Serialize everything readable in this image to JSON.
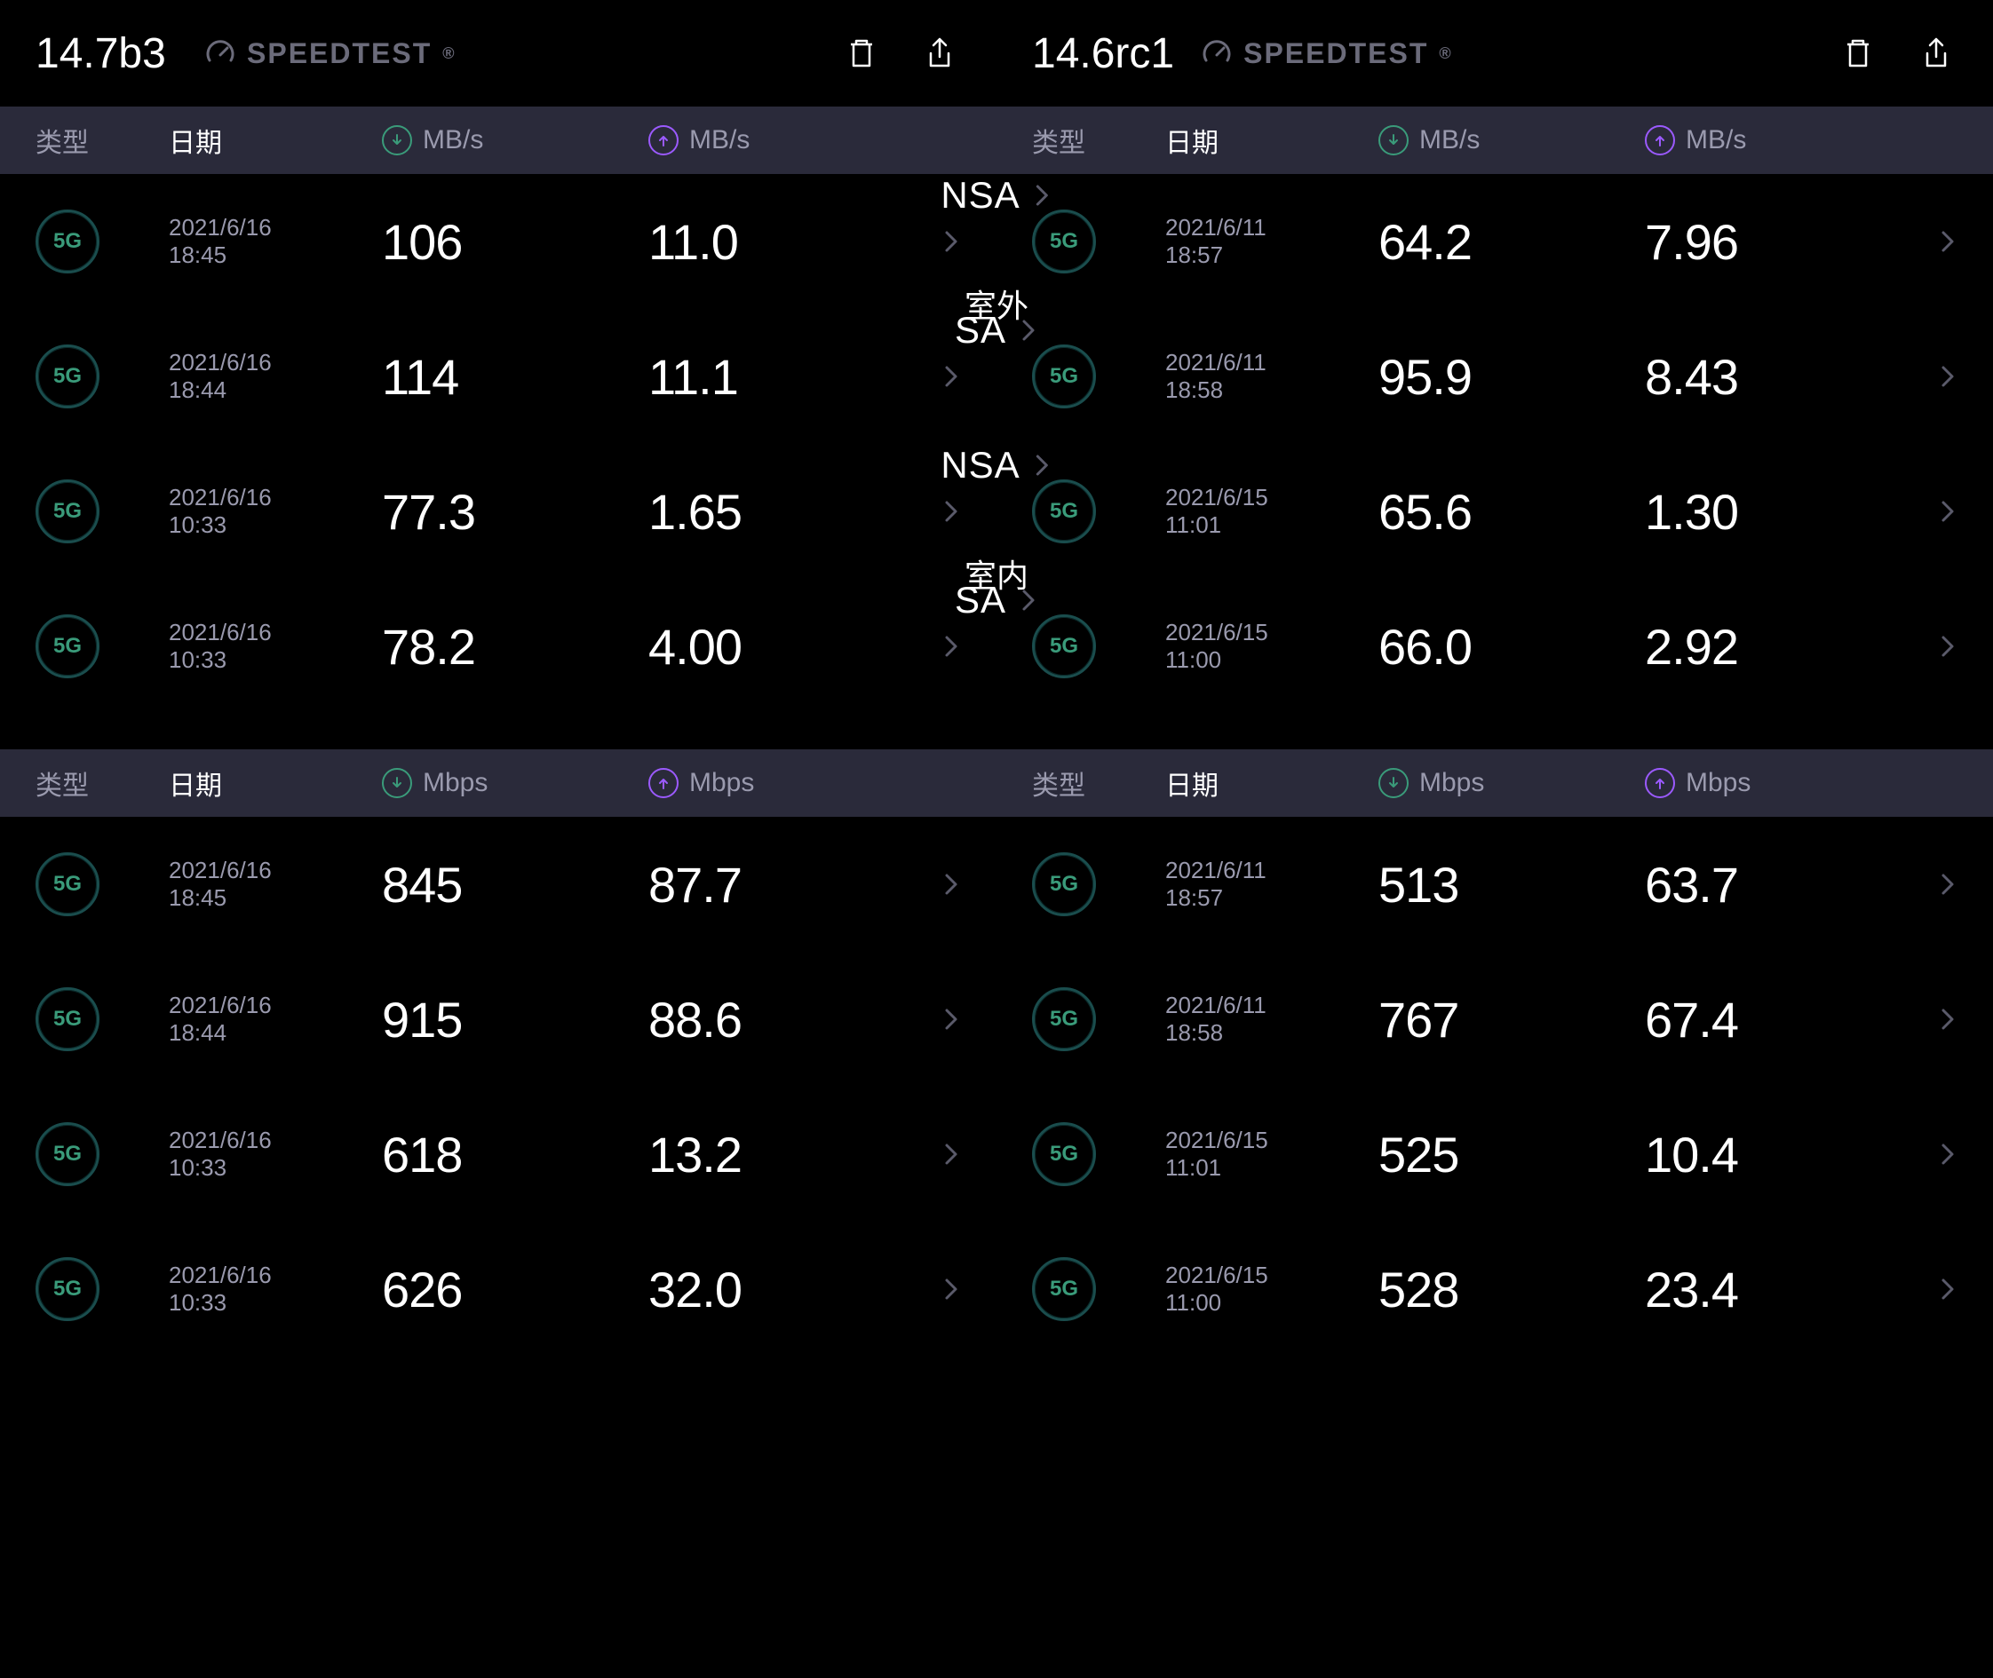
{
  "colors": {
    "background": "#000000",
    "header_bg": "#2a2a3a",
    "text_primary": "#ffffff",
    "text_muted": "#9a9aae",
    "download": "#3a9b7a",
    "upload": "#9b5aff",
    "badge_border": "#1a4d4d",
    "chevron": "#5a5a6a",
    "logo": "#6b6b7a"
  },
  "labels": {
    "type": "类型",
    "date": "日期",
    "unit_mbs": "MB/s",
    "unit_mbps": "Mbps",
    "speedtest": "SPEEDTEST",
    "outdoor": "室外",
    "indoor": "室内",
    "badge": "5G"
  },
  "left": {
    "version": "14.7b3"
  },
  "right": {
    "version": "14.6rc1"
  },
  "section1": {
    "unit": "MB/s",
    "left_rows": [
      {
        "date": "2021/6/16",
        "time": "18:45",
        "dl": "106",
        "ul": "11.0",
        "net": "NSA"
      },
      {
        "date": "2021/6/16",
        "time": "18:44",
        "dl": "114",
        "ul": "11.1",
        "net": "SA"
      },
      {
        "date": "2021/6/16",
        "time": "10:33",
        "dl": "77.3",
        "ul": "1.65",
        "net": "NSA"
      },
      {
        "date": "2021/6/16",
        "time": "10:33",
        "dl": "78.2",
        "ul": "4.00",
        "net": "SA"
      }
    ],
    "right_rows": [
      {
        "date": "2021/6/11",
        "time": "18:57",
        "dl": "64.2",
        "ul": "7.96"
      },
      {
        "date": "2021/6/11",
        "time": "18:58",
        "dl": "95.9",
        "ul": "8.43"
      },
      {
        "date": "2021/6/15",
        "time": "11:01",
        "dl": "65.6",
        "ul": "1.30"
      },
      {
        "date": "2021/6/15",
        "time": "11:00",
        "dl": "66.0",
        "ul": "2.92"
      }
    ],
    "loc_labels": [
      "室外",
      "室内"
    ]
  },
  "section2": {
    "unit": "Mbps",
    "left_rows": [
      {
        "date": "2021/6/16",
        "time": "18:45",
        "dl": "845",
        "ul": "87.7"
      },
      {
        "date": "2021/6/16",
        "time": "18:44",
        "dl": "915",
        "ul": "88.6"
      },
      {
        "date": "2021/6/16",
        "time": "10:33",
        "dl": "618",
        "ul": "13.2"
      },
      {
        "date": "2021/6/16",
        "time": "10:33",
        "dl": "626",
        "ul": "32.0"
      }
    ],
    "right_rows": [
      {
        "date": "2021/6/11",
        "time": "18:57",
        "dl": "513",
        "ul": "63.7"
      },
      {
        "date": "2021/6/11",
        "time": "18:58",
        "dl": "767",
        "ul": "67.4"
      },
      {
        "date": "2021/6/15",
        "time": "11:01",
        "dl": "525",
        "ul": "10.4"
      },
      {
        "date": "2021/6/15",
        "time": "11:00",
        "dl": "528",
        "ul": "23.4"
      }
    ]
  }
}
